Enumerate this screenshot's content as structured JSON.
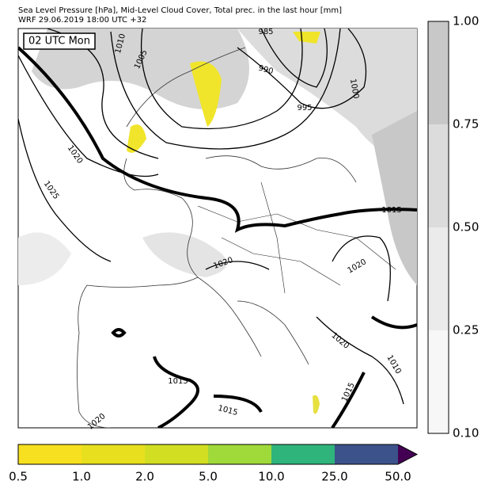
{
  "header": {
    "line1": "Sea Level Pressure [hPa], Mid-Level Cloud Cover, Total prec. in the last hour [mm]",
    "line2": "WRF 29.06.2019 18:00 UTC +32"
  },
  "time_label": "02 UTC Mon",
  "isobar_labels": [
    "1010",
    "1005",
    "985",
    "990",
    "995",
    "1000",
    "1020",
    "1025",
    "1015",
    "1020",
    "1020",
    "1010",
    "1020",
    "1015",
    "1015",
    "1015",
    "1020"
  ],
  "cloud_colorbar": {
    "ticks": [
      "1.00",
      "0.75",
      "0.50",
      "0.25",
      "0.10"
    ]
  },
  "precip_colorbar": {
    "ticks": [
      "0.5",
      "1.0",
      "2.0",
      "5.0",
      "10.0",
      "25.0",
      "50.0"
    ]
  }
}
